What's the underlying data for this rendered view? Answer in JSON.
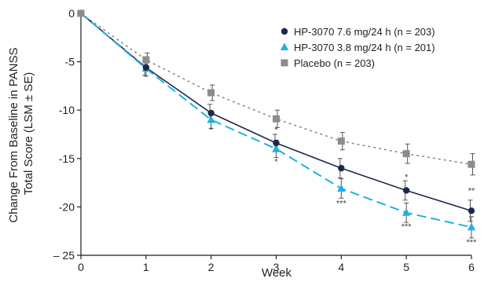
{
  "chart_data": {
    "type": "line",
    "xlabel": "Week",
    "ylabel_lines": [
      "Change From Baseline in PANSS",
      "Total Score (LSM ± SE)"
    ],
    "x": [
      0,
      1,
      2,
      3,
      4,
      5,
      6
    ],
    "xlim": [
      0,
      6
    ],
    "ylim": [
      -25,
      0
    ],
    "x_ticks": [
      "0",
      "1",
      "2",
      "3",
      "4",
      "5",
      "6"
    ],
    "y_ticks": [
      {
        "value": 0,
        "label": "0"
      },
      {
        "value": -5,
        "label": "-5"
      },
      {
        "value": -10,
        "label": "-10"
      },
      {
        "value": -15,
        "label": "-15"
      },
      {
        "value": -20,
        "label": "-20"
      },
      {
        "value": -25,
        "label": "– 25"
      }
    ],
    "grid": false,
    "legend_position": "top-right",
    "series": [
      {
        "name": "HP-3070 7.6 mg/24 h (n = 203)",
        "color": "#1b2a4a",
        "marker": "circle",
        "line_style": "solid",
        "values": [
          0,
          -5.6,
          -10.3,
          -13.4,
          -16.0,
          -18.3,
          -20.4
        ],
        "errors": [
          0,
          0.8,
          0.9,
          0.9,
          1.0,
          1.0,
          1.1
        ]
      },
      {
        "name": "HP-3070 3.8 mg/24 h (n = 201)",
        "color": "#1fb1e6",
        "marker": "triangle",
        "line_style": "dashed",
        "values": [
          0,
          -5.7,
          -11.0,
          -14.0,
          -18.1,
          -20.6,
          -22.1
        ],
        "errors": [
          0,
          0.8,
          0.9,
          0.9,
          1.0,
          1.0,
          1.1
        ]
      },
      {
        "name": "Placebo (n = 203)",
        "color": "#8c8c8c",
        "marker": "square",
        "line_style": "dotted",
        "values": [
          0,
          -4.8,
          -8.2,
          -10.9,
          -13.2,
          -14.5,
          -15.6
        ],
        "errors": [
          0,
          0.7,
          0.8,
          0.9,
          0.9,
          1.0,
          1.1
        ]
      }
    ],
    "annotations": [
      {
        "text": "*",
        "x": 2,
        "y": -12.0
      },
      {
        "text": "*",
        "x": 3,
        "y": -12.0
      },
      {
        "text": "*",
        "x": 3,
        "y": -15.3
      },
      {
        "text": "***",
        "x": 4,
        "y": -19.6
      },
      {
        "text": "*",
        "x": 5,
        "y": -16.9
      },
      {
        "text": "***",
        "x": 5,
        "y": -22.0
      },
      {
        "text": "**",
        "x": 6,
        "y": -18.3
      },
      {
        "text": "***",
        "x": 6,
        "y": -23.6
      }
    ]
  }
}
